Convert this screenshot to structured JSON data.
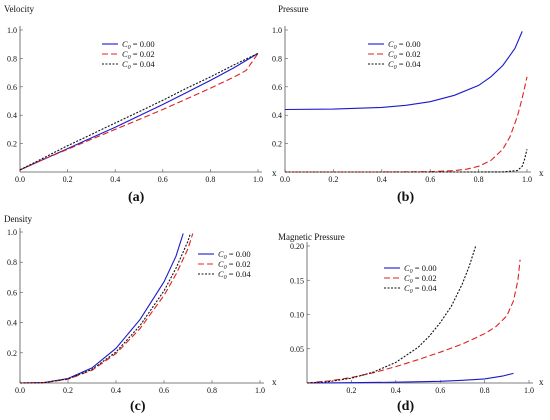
{
  "figure": {
    "panel_labels": [
      "(a)",
      "(b)",
      "(c)",
      "(d)"
    ],
    "series_style": [
      {
        "color": "#1a1acc",
        "dash": "solid"
      },
      {
        "color": "#e02020",
        "dash": "dashed"
      },
      {
        "color": "#111111",
        "dash": "dotted"
      }
    ],
    "legend_entries": [
      {
        "symbol": "C",
        "sub": "0",
        "rest": " = 0.00"
      },
      {
        "symbol": "C",
        "sub": "0",
        "rest": " = 0.02"
      },
      {
        "symbol": "C",
        "sub": "0",
        "rest": " = 0.04"
      }
    ]
  },
  "chart_data": [
    {
      "type": "line",
      "title": "",
      "ylabel": "Velocity",
      "xlabel": "x",
      "xlim": [
        0,
        1.0
      ],
      "ylim": [
        0,
        1.0
      ],
      "xticks": [
        "0.0",
        "0.2",
        "0.4",
        "0.6",
        "0.8",
        "1.0"
      ],
      "xtick_values": [
        0,
        0.2,
        0.4,
        0.6,
        0.8,
        1.0
      ],
      "yticks": [
        "0.2",
        "0.4",
        "0.6",
        "0.8",
        "1.0"
      ],
      "ytick_values": [
        0.2,
        0.4,
        0.6,
        0.8,
        1.0
      ],
      "legend_position": "top-right",
      "series": [
        {
          "name": "C0 = 0.00",
          "x": [
            0,
            0.1,
            0.2,
            0.3,
            0.4,
            0.5,
            0.6,
            0.7,
            0.8,
            0.9,
            1.0
          ],
          "y": [
            0.015,
            0.09,
            0.165,
            0.24,
            0.315,
            0.395,
            0.475,
            0.56,
            0.645,
            0.735,
            0.835
          ]
        },
        {
          "name": "C0 = 0.02",
          "x": [
            0,
            0.1,
            0.2,
            0.3,
            0.4,
            0.5,
            0.6,
            0.7,
            0.8,
            0.9,
            0.95,
            1.0
          ],
          "y": [
            0.015,
            0.09,
            0.16,
            0.23,
            0.3,
            0.37,
            0.44,
            0.515,
            0.59,
            0.67,
            0.715,
            0.835
          ]
        },
        {
          "name": "C0 = 0.04",
          "x": [
            0,
            0.1,
            0.2,
            0.3,
            0.4,
            0.5,
            0.6,
            0.7,
            0.8,
            0.9,
            1.0
          ],
          "y": [
            0.015,
            0.1,
            0.185,
            0.265,
            0.345,
            0.425,
            0.505,
            0.59,
            0.67,
            0.755,
            0.835
          ]
        }
      ]
    },
    {
      "type": "line",
      "title": "",
      "ylabel": "Pressure",
      "xlabel": "x",
      "xlim": [
        0,
        1.0
      ],
      "ylim": [
        0,
        1.0
      ],
      "xticks": [
        "0.0",
        "0.2",
        "0.4",
        "0.6",
        "0.8",
        "1.0"
      ],
      "xtick_values": [
        0,
        0.2,
        0.4,
        0.6,
        0.8,
        1.0
      ],
      "yticks": [
        "0.2",
        "0.4",
        "0.6",
        "0.8",
        "1.0"
      ],
      "ytick_values": [
        0.2,
        0.4,
        0.6,
        0.8,
        1.0
      ],
      "legend_position": "top-right",
      "series": [
        {
          "name": "C0 = 0.00",
          "x": [
            0,
            0.2,
            0.4,
            0.5,
            0.6,
            0.7,
            0.8,
            0.85,
            0.9,
            0.95,
            0.98
          ],
          "y": [
            0.44,
            0.443,
            0.455,
            0.47,
            0.495,
            0.54,
            0.61,
            0.67,
            0.75,
            0.87,
            0.99
          ]
        },
        {
          "name": "C0 = 0.02",
          "x": [
            0,
            0.2,
            0.4,
            0.6,
            0.7,
            0.75,
            0.8,
            0.85,
            0.9,
            0.93,
            0.96,
            0.98,
            1.0
          ],
          "y": [
            0,
            0,
            0,
            0.002,
            0.01,
            0.02,
            0.04,
            0.08,
            0.16,
            0.25,
            0.39,
            0.52,
            0.67
          ]
        },
        {
          "name": "C0 = 0.04",
          "x": [
            0,
            0.2,
            0.4,
            0.6,
            0.8,
            0.9,
            0.96,
            0.98,
            0.99,
            1.0
          ],
          "y": [
            0,
            0,
            0,
            0,
            0,
            0.001,
            0.01,
            0.04,
            0.09,
            0.16
          ]
        }
      ]
    },
    {
      "type": "line",
      "title": "",
      "ylabel": "Density",
      "xlabel": "x",
      "xlim": [
        0,
        1.0
      ],
      "ylim": [
        0,
        1.0
      ],
      "xticks": [
        "0.0",
        "0.2",
        "0.4",
        "0.6",
        "0.8",
        "1.0"
      ],
      "xtick_values": [
        0,
        0.2,
        0.4,
        0.6,
        0.8,
        1.0
      ],
      "yticks": [
        "0.2",
        "0.4",
        "0.6",
        "0.8",
        "1.0"
      ],
      "ytick_values": [
        0.2,
        0.4,
        0.6,
        0.8,
        1.0
      ],
      "legend_position": "top-right",
      "series": [
        {
          "name": "C0 = 0.00",
          "x": [
            0,
            0.1,
            0.2,
            0.3,
            0.4,
            0.5,
            0.6,
            0.65,
            0.68
          ],
          "y": [
            0,
            0.003,
            0.03,
            0.1,
            0.23,
            0.42,
            0.67,
            0.84,
            0.99
          ]
        },
        {
          "name": "C0 = 0.02",
          "x": [
            0,
            0.1,
            0.2,
            0.3,
            0.4,
            0.5,
            0.6,
            0.65,
            0.7,
            0.72
          ],
          "y": [
            0,
            0.002,
            0.025,
            0.085,
            0.195,
            0.36,
            0.58,
            0.72,
            0.89,
            0.99
          ]
        },
        {
          "name": "C0 = 0.04",
          "x": [
            0,
            0.1,
            0.2,
            0.3,
            0.4,
            0.5,
            0.6,
            0.65,
            0.7,
            0.71
          ],
          "y": [
            0,
            0.002,
            0.027,
            0.09,
            0.205,
            0.38,
            0.61,
            0.76,
            0.94,
            0.99
          ]
        }
      ]
    },
    {
      "type": "line",
      "title": "",
      "ylabel": "Magnetic Pressure",
      "xlabel": "x",
      "xlim": [
        0,
        1.0
      ],
      "ylim": [
        0,
        0.2
      ],
      "xticks": [
        "0.2",
        "0.4",
        "0.6",
        "0.8",
        "1.0"
      ],
      "xtick_values": [
        0.2,
        0.4,
        0.6,
        0.8,
        1.0
      ],
      "yticks": [
        "0.05",
        "0.10",
        "0.15",
        "0.20"
      ],
      "ytick_values": [
        0.05,
        0.1,
        0.15,
        0.2
      ],
      "legend_position": "top-left",
      "series": [
        {
          "name": "C0 = 0.00",
          "x": [
            0,
            0.2,
            0.4,
            0.6,
            0.7,
            0.8,
            0.88,
            0.93
          ],
          "y": [
            0,
            0.0005,
            0.0012,
            0.0025,
            0.004,
            0.006,
            0.01,
            0.014
          ]
        },
        {
          "name": "C0 = 0.02",
          "x": [
            0,
            0.1,
            0.2,
            0.3,
            0.4,
            0.5,
            0.6,
            0.7,
            0.8,
            0.85,
            0.9,
            0.93,
            0.95,
            0.96
          ],
          "y": [
            0,
            0.003,
            0.008,
            0.015,
            0.024,
            0.034,
            0.045,
            0.057,
            0.072,
            0.082,
            0.098,
            0.12,
            0.15,
            0.18
          ]
        },
        {
          "name": "C0 = 0.04",
          "x": [
            0,
            0.1,
            0.2,
            0.3,
            0.4,
            0.5,
            0.55,
            0.6,
            0.65,
            0.7,
            0.73,
            0.76
          ],
          "y": [
            0,
            0.002,
            0.007,
            0.016,
            0.03,
            0.052,
            0.068,
            0.088,
            0.112,
            0.145,
            0.17,
            0.2
          ]
        }
      ]
    }
  ]
}
